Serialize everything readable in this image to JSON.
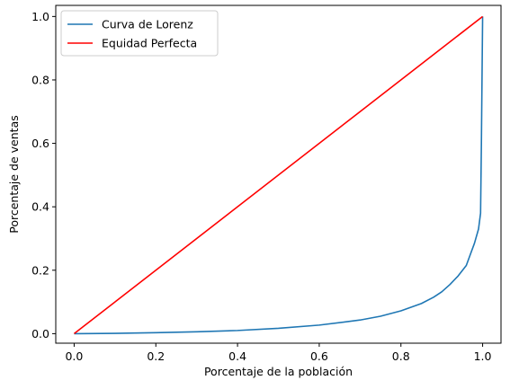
{
  "chart_data": {
    "type": "line",
    "title": "",
    "xlabel": "Porcentaje de la población",
    "ylabel": "Porcentaje de ventas",
    "xlim": [
      -0.045,
      1.045
    ],
    "ylim": [
      -0.03,
      1.035
    ],
    "xticks": [
      0.0,
      0.2,
      0.4,
      0.6,
      0.8,
      1.0
    ],
    "yticks": [
      0.0,
      0.2,
      0.4,
      0.6,
      0.8,
      1.0
    ],
    "xtick_labels": [
      "0.0",
      "0.2",
      "0.4",
      "0.6",
      "0.8",
      "1.0"
    ],
    "ytick_labels": [
      "0.0",
      "0.2",
      "0.4",
      "0.6",
      "0.8",
      "1.0"
    ],
    "grid": false,
    "legend_position": "top-left",
    "series": [
      {
        "name": "Curva de Lorenz",
        "color": "#1f77b4",
        "x": [
          0.0,
          0.1,
          0.2,
          0.3,
          0.4,
          0.5,
          0.6,
          0.7,
          0.75,
          0.8,
          0.85,
          0.88,
          0.9,
          0.92,
          0.94,
          0.96,
          0.97,
          0.98,
          0.99,
          0.995,
          0.997,
          1.0
        ],
        "y": [
          0.0,
          0.001,
          0.003,
          0.006,
          0.01,
          0.017,
          0.027,
          0.043,
          0.055,
          0.072,
          0.095,
          0.115,
          0.132,
          0.155,
          0.182,
          0.215,
          0.25,
          0.285,
          0.33,
          0.38,
          0.6,
          1.0
        ]
      },
      {
        "name": "Equidad Perfecta",
        "color": "#ff0000",
        "x": [
          0.0,
          1.0
        ],
        "y": [
          0.0,
          1.0
        ]
      }
    ]
  }
}
